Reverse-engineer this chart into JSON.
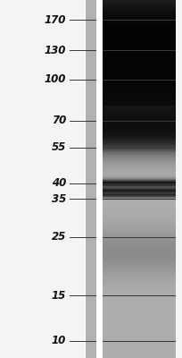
{
  "fig_w": 2.04,
  "fig_h": 4.0,
  "dpi": 100,
  "bg_color": "#f0f0f0",
  "lane1_bg": "#aaaaaa",
  "lane2_bg": "#999999",
  "white_sep_color": "#ffffff",
  "label_color": "#111111",
  "tick_color": "#333333",
  "ladder_labels": [
    "170",
    "130",
    "100",
    "70",
    "55",
    "40",
    "35",
    "25",
    "15",
    "10"
  ],
  "ladder_kda": [
    170,
    130,
    100,
    70,
    55,
    40,
    35,
    25,
    15,
    10
  ],
  "label_fontsize": 8.5,
  "label_fontstyle": "italic",
  "label_fontweight": "bold"
}
